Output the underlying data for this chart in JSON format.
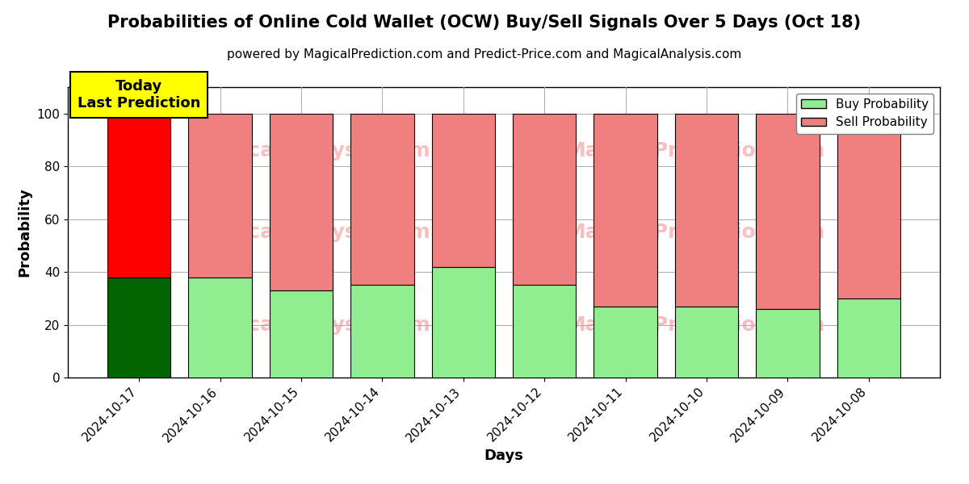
{
  "title": "Probabilities of Online Cold Wallet (OCW) Buy/Sell Signals Over 5 Days (Oct 18)",
  "subtitle": "powered by MagicalPrediction.com and Predict-Price.com and MagicalAnalysis.com",
  "xlabel": "Days",
  "ylabel": "Probability",
  "dates": [
    "2024-10-17",
    "2024-10-16",
    "2024-10-15",
    "2024-10-14",
    "2024-10-13",
    "2024-10-12",
    "2024-10-11",
    "2024-10-10",
    "2024-10-09",
    "2024-10-08"
  ],
  "buy_probs": [
    38,
    38,
    33,
    35,
    42,
    35,
    27,
    27,
    26,
    30
  ],
  "sell_probs": [
    62,
    62,
    67,
    65,
    58,
    65,
    73,
    73,
    74,
    70
  ],
  "buy_color_today": "#006400",
  "sell_color_today": "#ff0000",
  "buy_color_rest": "#90EE90",
  "sell_color_rest": "#F08080",
  "bar_edge_color": "#000000",
  "ylim": [
    0,
    110
  ],
  "yticks": [
    0,
    20,
    40,
    60,
    80,
    100
  ],
  "dashed_line_y": 110,
  "today_label": "Today\nLast Prediction",
  "legend_buy": "Buy Probability",
  "legend_sell": "Sell Probability",
  "background_color": "#ffffff",
  "grid_color": "#aaaaaa",
  "title_fontsize": 15,
  "subtitle_fontsize": 11,
  "label_fontsize": 13,
  "tick_fontsize": 11,
  "bar_width": 0.78
}
